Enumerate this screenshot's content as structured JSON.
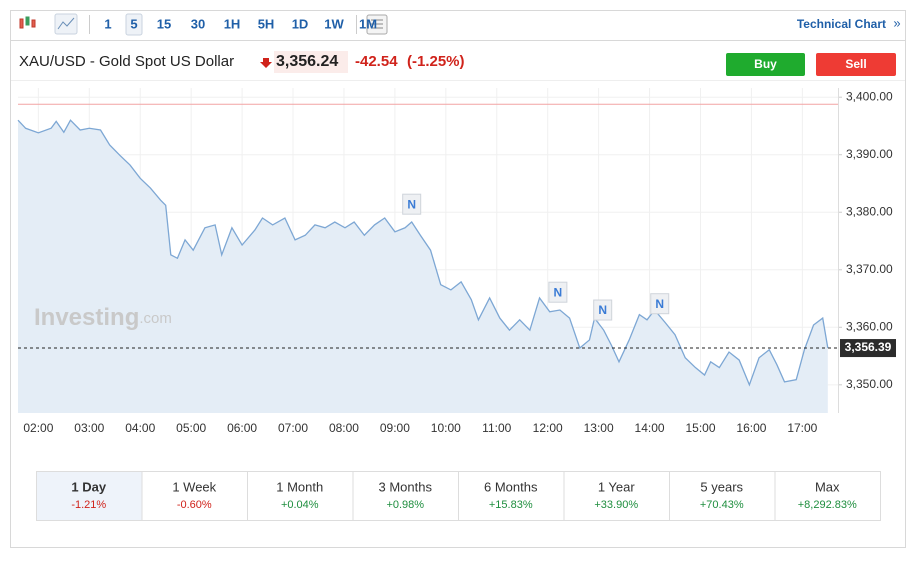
{
  "toolbar": {
    "intervals": [
      "1",
      "5",
      "15",
      "30",
      "1H",
      "5H",
      "1D",
      "1W",
      "1M"
    ],
    "selected": 1,
    "link": "Technical Chart",
    "link_icon": "»"
  },
  "header": {
    "instrument": "XAU/USD - Gold Spot US Dollar",
    "price": "3,356.24",
    "change": "-42.54",
    "change_pct": "(-1.25%)",
    "buy": "Buy",
    "sell": "Sell"
  },
  "watermark": {
    "brand": "Investing",
    "suffix": ".com"
  },
  "chart_data": {
    "type": "area",
    "color": "#7da7d4",
    "fill": "#e4edf6",
    "x": [
      1.6,
      1.75,
      2.0,
      2.25,
      2.35,
      2.5,
      2.63,
      2.82,
      3.0,
      3.22,
      3.4,
      3.6,
      3.8,
      4.0,
      4.2,
      4.4,
      4.5,
      4.6,
      4.73,
      4.88,
      5.04,
      5.27,
      5.47,
      5.6,
      5.8,
      6.0,
      6.25,
      6.4,
      6.6,
      6.84,
      7.04,
      7.24,
      7.43,
      7.63,
      7.82,
      8.02,
      8.2,
      8.4,
      8.6,
      8.8,
      9.0,
      9.2,
      9.33,
      9.5,
      9.7,
      9.9,
      10.1,
      10.3,
      10.5,
      10.64,
      10.86,
      11.06,
      11.25,
      11.45,
      11.65,
      11.84,
      12.04,
      12.24,
      12.43,
      12.63,
      12.82,
      12.92,
      13.1,
      13.25,
      13.4,
      13.6,
      13.8,
      13.95,
      14.1,
      14.3,
      14.5,
      14.7,
      14.9,
      15.08,
      15.2,
      15.37,
      15.56,
      15.76,
      15.96,
      16.15,
      16.35,
      16.5,
      16.65,
      16.88,
      17.04,
      17.22,
      17.4,
      17.5
    ],
    "values": [
      3396.0,
      3394.6,
      3393.8,
      3394.6,
      3395.8,
      3393.9,
      3396.0,
      3394.3,
      3394.6,
      3394.3,
      3391.7,
      3389.9,
      3388.2,
      3385.9,
      3384.2,
      3382.1,
      3381.2,
      3372.6,
      3372.0,
      3375.2,
      3373.4,
      3377.3,
      3377.8,
      3372.6,
      3377.3,
      3374.3,
      3376.9,
      3379.0,
      3377.8,
      3379.0,
      3375.2,
      3376.0,
      3377.8,
      3377.3,
      3378.3,
      3377.3,
      3378.3,
      3376.0,
      3377.8,
      3379.0,
      3376.6,
      3377.3,
      3378.3,
      3376.0,
      3373.4,
      3367.4,
      3366.5,
      3367.9,
      3364.8,
      3361.3,
      3365.1,
      3361.6,
      3359.5,
      3361.3,
      3359.5,
      3365.1,
      3362.7,
      3363.0,
      3361.6,
      3356.4,
      3357.8,
      3361.6,
      3359.5,
      3356.9,
      3354.0,
      3357.8,
      3362.2,
      3361.3,
      3363.0,
      3360.9,
      3358.7,
      3354.7,
      3353.0,
      3351.7,
      3354.0,
      3353.0,
      3355.7,
      3354.3,
      3350.0,
      3354.7,
      3356.1,
      3353.5,
      3350.5,
      3350.9,
      3356.1,
      3360.4,
      3361.6,
      3356.4
    ],
    "xlim": [
      1.6,
      17.7
    ],
    "ylim": [
      3345.1,
      3401.6
    ],
    "xticks": [
      {
        "value": 2,
        "label": "02:00"
      },
      {
        "value": 3,
        "label": "03:00"
      },
      {
        "value": 4,
        "label": "04:00"
      },
      {
        "value": 5,
        "label": "05:00"
      },
      {
        "value": 6,
        "label": "06:00"
      },
      {
        "value": 7,
        "label": "07:00"
      },
      {
        "value": 8,
        "label": "08:00"
      },
      {
        "value": 9,
        "label": "09:00"
      },
      {
        "value": 10,
        "label": "10:00"
      },
      {
        "value": 11,
        "label": "11:00"
      },
      {
        "value": 12,
        "label": "12:00"
      },
      {
        "value": 13,
        "label": "13:00"
      },
      {
        "value": 14,
        "label": "14:00"
      },
      {
        "value": 15,
        "label": "15:00"
      },
      {
        "value": 16,
        "label": "16:00"
      },
      {
        "value": 17,
        "label": "17:00"
      }
    ],
    "yticks": [
      {
        "value": 3350,
        "label": "3,350.00"
      },
      {
        "value": 3360,
        "label": "3,360.00"
      },
      {
        "value": 3370,
        "label": "3,370.00"
      },
      {
        "value": 3380,
        "label": "3,380.00"
      },
      {
        "value": 3390,
        "label": "3,390.00"
      },
      {
        "value": 3400,
        "label": "3,400.00"
      }
    ],
    "grid": true,
    "previous_close": 3398.78,
    "previous_close_color": "#f2a3a3",
    "last_value": 3356.39,
    "last_value_label": "3,356.39",
    "news_markers": [
      {
        "label": "N",
        "x": 9.33,
        "y": 3381.4
      },
      {
        "label": "N",
        "x": 12.2,
        "y": 3366.1
      },
      {
        "label": "N",
        "x": 13.08,
        "y": 3363.0
      },
      {
        "label": "N",
        "x": 14.2,
        "y": 3364.1
      }
    ]
  },
  "periods": [
    {
      "name": "1 Day",
      "change": "-1.21%",
      "color": "#d0231b"
    },
    {
      "name": "1 Week",
      "change": "-0.60%",
      "color": "#d0231b"
    },
    {
      "name": "1 Month",
      "change": "+0.04%",
      "color": "#1e8e3e"
    },
    {
      "name": "3 Months",
      "change": "+0.98%",
      "color": "#1e8e3e"
    },
    {
      "name": "6 Months",
      "change": "+15.83%",
      "color": "#1e8e3e"
    },
    {
      "name": "1 Year",
      "change": "+33.90%",
      "color": "#1e8e3e"
    },
    {
      "name": "5 years",
      "change": "+70.43%",
      "color": "#1e8e3e"
    },
    {
      "name": "Max",
      "change": "+8,292.83%",
      "color": "#1e8e3e"
    }
  ],
  "selected_period": 0
}
